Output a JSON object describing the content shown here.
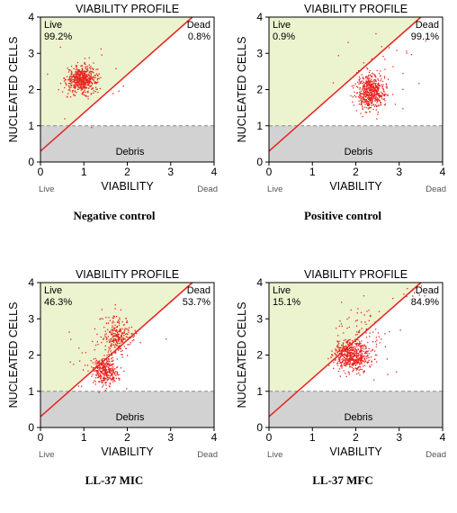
{
  "figure": {
    "colors": {
      "live_region": "#ecf3cf",
      "debris_region": "#d2d2d2",
      "diagonal": "#e8231e",
      "points": "#e8231e",
      "axis": "#000000",
      "dashed": "#8c8c8c",
      "corner_label": "#555555"
    }
  },
  "chart_data": [
    {
      "type": "scatter",
      "caption": "Negative control",
      "title": "VIABILITY PROFILE",
      "xlabel": "VIABILITY",
      "ylabel": "NUCLEATED CELLS",
      "xlim": [
        0,
        4
      ],
      "ylim": [
        0,
        4
      ],
      "xticks": [
        "0",
        "1",
        "2",
        "3",
        "4"
      ],
      "yticks": [
        "0",
        "1",
        "2",
        "3",
        "4"
      ],
      "x_left_label": "Live",
      "x_right_label": "Dead",
      "debris_threshold": 1.0,
      "debris_label": "Debris",
      "gate_line": {
        "x1": 0,
        "y1": 0.3,
        "x2": 3.5,
        "y2": 4.0
      },
      "live_label": "Live",
      "live_percent": "99.2%",
      "dead_label": "Dead",
      "dead_percent": "0.8%",
      "clusters": [
        {
          "cx": 0.95,
          "cy": 2.28,
          "sx": 0.17,
          "sy": 0.17,
          "n": 520
        },
        {
          "cx": 0.95,
          "cy": 2.28,
          "sx": 0.45,
          "sy": 0.45,
          "n": 45
        }
      ]
    },
    {
      "type": "scatter",
      "caption": "Positive control",
      "title": "VIABILITY PROFILE",
      "xlabel": "VIABILITY",
      "ylabel": "NUCLEATED CELLS",
      "xlim": [
        0,
        4
      ],
      "ylim": [
        0,
        4
      ],
      "xticks": [
        "0",
        "1",
        "2",
        "3",
        "4"
      ],
      "yticks": [
        "0",
        "1",
        "2",
        "3",
        "4"
      ],
      "x_left_label": "Live",
      "x_right_label": "Dead",
      "debris_threshold": 1.0,
      "debris_label": "Debris",
      "gate_line": {
        "x1": 0,
        "y1": 0.3,
        "x2": 3.5,
        "y2": 4.0
      },
      "live_label": "Live",
      "live_percent": "0.9%",
      "dead_label": "Dead",
      "dead_percent": "99.1%",
      "clusters": [
        {
          "cx": 2.35,
          "cy": 1.95,
          "sx": 0.16,
          "sy": 0.25,
          "n": 540
        },
        {
          "cx": 2.6,
          "cy": 2.6,
          "sx": 0.5,
          "sy": 0.6,
          "n": 25
        }
      ]
    },
    {
      "type": "scatter",
      "caption": "LL-37 MIC",
      "title": "VIABILITY PROFILE",
      "xlabel": "VIABILITY",
      "ylabel": "NUCLEATED CELLS",
      "xlim": [
        0,
        4
      ],
      "ylim": [
        0,
        4
      ],
      "xticks": [
        "0",
        "1",
        "2",
        "3",
        "4"
      ],
      "yticks": [
        "0",
        "1",
        "2",
        "3",
        "4"
      ],
      "x_left_label": "Live",
      "x_right_label": "Dead",
      "debris_threshold": 1.0,
      "debris_label": "Debris",
      "gate_line": {
        "x1": 0,
        "y1": 0.3,
        "x2": 3.5,
        "y2": 4.0
      },
      "live_label": "Live",
      "live_percent": "46.3%",
      "dead_label": "Dead",
      "dead_percent": "53.7%",
      "clusters": [
        {
          "cx": 1.5,
          "cy": 1.55,
          "sx": 0.15,
          "sy": 0.2,
          "n": 330
        },
        {
          "cx": 1.75,
          "cy": 2.5,
          "sx": 0.17,
          "sy": 0.28,
          "n": 250
        },
        {
          "cx": 1.6,
          "cy": 2.1,
          "sx": 0.45,
          "sy": 0.5,
          "n": 40
        }
      ]
    },
    {
      "type": "scatter",
      "caption": "LL-37 MFC",
      "title": "VIABILITY PROFILE",
      "xlabel": "VIABILITY",
      "ylabel": "NUCLEATED CELLS",
      "xlim": [
        0,
        4
      ],
      "ylim": [
        0,
        4
      ],
      "xticks": [
        "0",
        "1",
        "2",
        "3",
        "4"
      ],
      "yticks": [
        "0",
        "1",
        "2",
        "3",
        "4"
      ],
      "x_left_label": "Live",
      "x_right_label": "Dead",
      "debris_threshold": 1.0,
      "debris_label": "Debris",
      "gate_line": {
        "x1": 0,
        "y1": 0.3,
        "x2": 3.5,
        "y2": 4.0
      },
      "live_label": "Live",
      "live_percent": "15.1%",
      "dead_label": "Dead",
      "dead_percent": "84.9%",
      "clusters": [
        {
          "cx": 1.9,
          "cy": 2.0,
          "sx": 0.2,
          "sy": 0.22,
          "n": 560
        },
        {
          "cx": 2.2,
          "cy": 2.6,
          "sx": 0.3,
          "sy": 0.45,
          "n": 80
        },
        {
          "cx": 3.3,
          "cy": 3.7,
          "sx": 0.25,
          "sy": 0.2,
          "n": 12
        }
      ]
    }
  ]
}
